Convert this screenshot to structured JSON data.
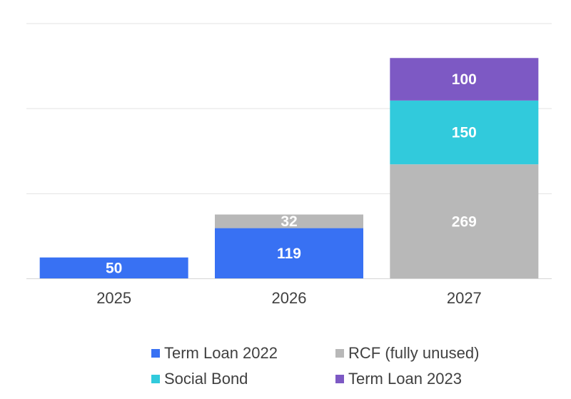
{
  "chart_data": {
    "type": "bar",
    "stacked": true,
    "categories": [
      "2025",
      "2026",
      "2027"
    ],
    "series": [
      {
        "name": "Term Loan 2022",
        "color": "#3871f3",
        "values": [
          50,
          119,
          null
        ]
      },
      {
        "name": "RCF (fully unused)",
        "color": "#b8b8b8",
        "values": [
          null,
          32,
          269
        ]
      },
      {
        "name": "Social Bond",
        "color": "#31cadc",
        "values": [
          null,
          null,
          150
        ]
      },
      {
        "name": "Term Loan 2023",
        "color": "#7d59c4",
        "values": [
          null,
          null,
          100
        ]
      }
    ],
    "ylim": [
      0,
      600
    ],
    "grid": true,
    "legend_position": "bottom",
    "title": "",
    "xlabel": "",
    "ylabel": ""
  }
}
